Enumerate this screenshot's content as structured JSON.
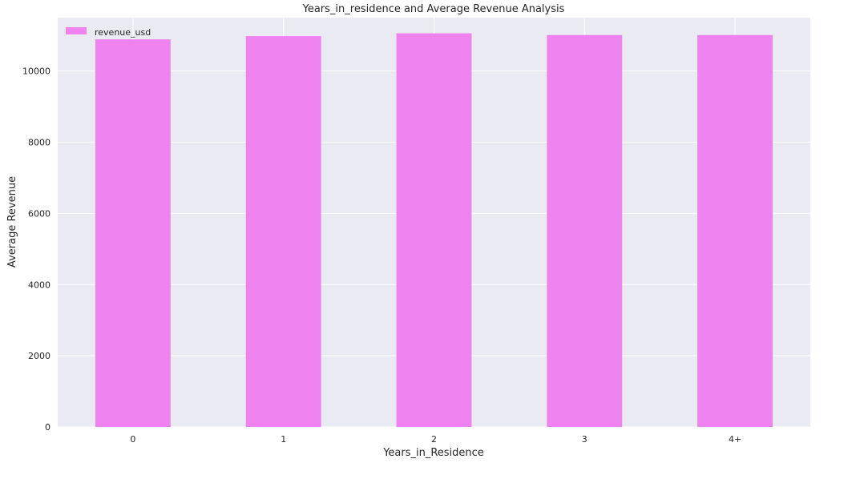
{
  "chart_data": {
    "type": "bar",
    "title": "Years_in_residence and Average Revenue Analysis",
    "xlabel": "Years_in_Residence",
    "ylabel": "Average Revenue",
    "categories": [
      "0",
      "1",
      "2",
      "3",
      "4+"
    ],
    "series": [
      {
        "name": "revenue_usd",
        "values": [
          10890,
          10980,
          11060,
          11010,
          11010
        ],
        "color": "#ee82ee"
      }
    ],
    "ylim": [
      0,
      11500
    ],
    "yticks": [
      0,
      2000,
      4000,
      6000,
      8000,
      10000
    ],
    "ytick_labels": [
      "0",
      "2000",
      "4000",
      "6000",
      "8000",
      "10000"
    ],
    "grid": true,
    "legend": "top-left",
    "colors": {
      "plot_background": "#eaeaf2",
      "grid": "#ffffff",
      "text": "#262626"
    }
  }
}
